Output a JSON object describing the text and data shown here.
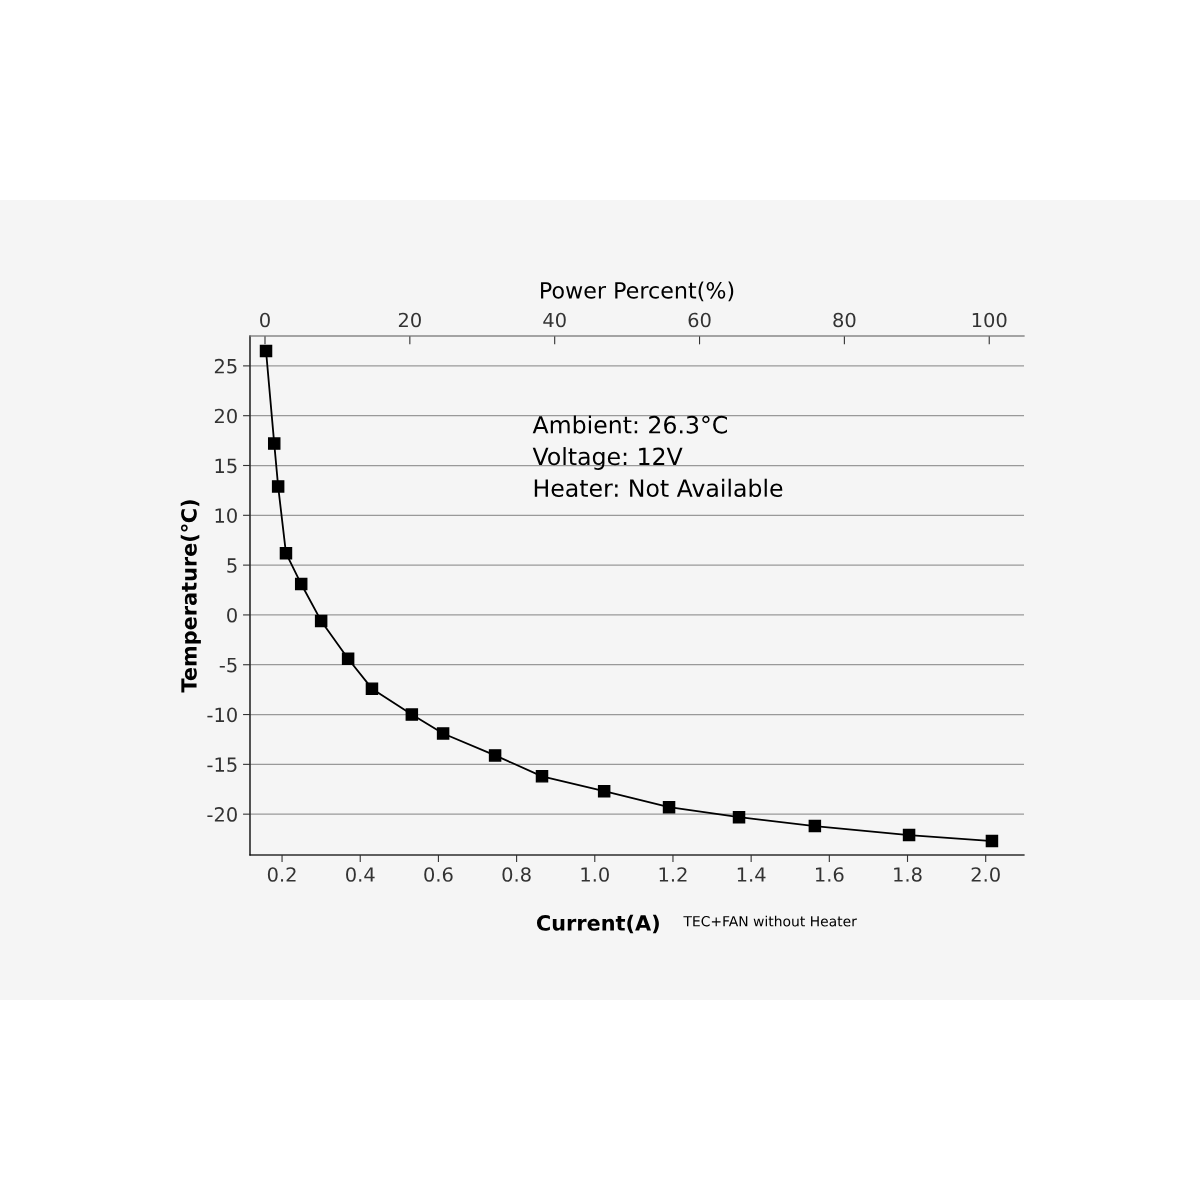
{
  "chart_data": {
    "type": "line",
    "x2label": "Power Percent(%)",
    "xlabel": "Current(A)",
    "ylabel": "Temperature(℃)",
    "annotations": [
      "Ambient: 26.3°C",
      "Voltage: 12V",
      "Heater: Not Available",
      "TEC+FAN without Heater"
    ],
    "series": [
      {
        "color": "#000000",
        "x": [
          0.159,
          0.18,
          0.19,
          0.21,
          0.249,
          0.3,
          0.369,
          0.43,
          0.532,
          0.612,
          0.745,
          0.865,
          1.024,
          1.19,
          1.369,
          1.563,
          1.804,
          2.016
        ],
        "values": [
          26.5,
          17.2,
          12.9,
          6.2,
          3.1,
          -0.6,
          -4.4,
          -7.4,
          -10.0,
          -11.9,
          -14.1,
          -16.2,
          -17.7,
          -19.3,
          -20.3,
          -21.2,
          -22.1,
          -22.7
        ]
      }
    ],
    "marker": "square",
    "line_style": "solid",
    "grid": "y",
    "xlim": [
      0.118,
      2.098
    ],
    "xticks": [
      {
        "value": 0.2,
        "label": "0.2"
      },
      {
        "value": 0.4,
        "label": "0.4"
      },
      {
        "value": 0.6,
        "label": "0.6"
      },
      {
        "value": 0.8,
        "label": "0.8"
      },
      {
        "value": 1.0,
        "label": "1.0"
      },
      {
        "value": 1.2,
        "label": "1.2"
      },
      {
        "value": 1.4,
        "label": "1.4"
      },
      {
        "value": 1.6,
        "label": "1.6"
      },
      {
        "value": 1.8,
        "label": "1.8"
      },
      {
        "value": 2.0,
        "label": "2.0"
      }
    ],
    "ylim": [
      -24.1,
      28.0
    ],
    "yticks": [
      -20,
      -15,
      -10,
      -5,
      0,
      5,
      10,
      15,
      20,
      25
    ],
    "x2lim": [
      -2.07,
      104.8
    ],
    "x2ticks": [
      0,
      20,
      40,
      60,
      80,
      100
    ]
  }
}
